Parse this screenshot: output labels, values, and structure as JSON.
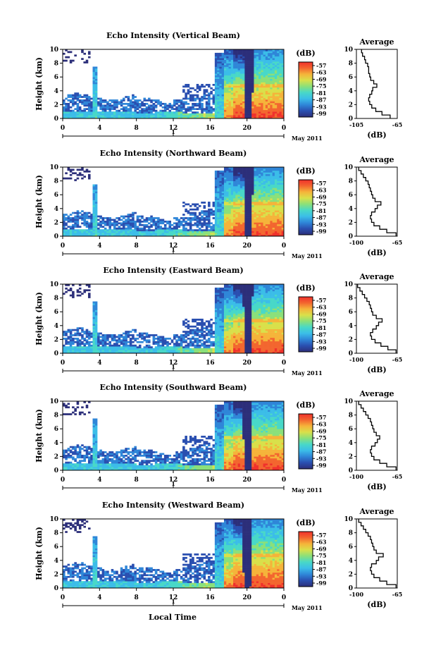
{
  "figure": {
    "xaxis_label": "Local Time",
    "colorbar_unit": "(dB)",
    "colorbar_ticks": [
      "-57",
      "-63",
      "-69",
      "-75",
      "-81",
      "-87",
      "-93",
      "-99"
    ],
    "colorscale": [
      "#2c2f7a",
      "#2a4fb0",
      "#2f86d8",
      "#3bbde8",
      "#48d8c8",
      "#8ae07a",
      "#d9e04a",
      "#f5b43a",
      "#f3662f",
      "#f0302b"
    ],
    "x_ticks": [
      "0",
      "4",
      "8",
      "12",
      "16",
      "20",
      "0"
    ],
    "date_axis": {
      "label": "1",
      "month": "May 2011"
    },
    "y_ticks": [
      "0",
      "2",
      "4",
      "6",
      "8",
      "10"
    ],
    "y_label": "Height (km)",
    "avg_title": "Average",
    "avg_unit": "(dB)"
  },
  "chart_data": [
    {
      "type": "heatmap",
      "title": "Echo Intensity (Vertical Beam)",
      "xlabel": "",
      "ylabel": "Height (km)",
      "xlim": [
        0,
        24
      ],
      "ylim": [
        0,
        10
      ],
      "colorbar": {
        "label": "(dB)",
        "range": [
          -99,
          -57
        ]
      },
      "average_profile": {
        "title": "Average",
        "xlabel": "(dB)",
        "xlim": [
          -105,
          -65
        ],
        "xticks": [
          "-105",
          "-65"
        ],
        "yticks": [
          "0",
          "2",
          "4",
          "6",
          "8",
          "10"
        ],
        "height_km": [
          0,
          0.5,
          1,
          1.5,
          2,
          2.5,
          3,
          3.5,
          4,
          4.5,
          5,
          5.5,
          6,
          6.5,
          7,
          7.5,
          8,
          8.5,
          9,
          9.5
        ],
        "values_db": [
          -72,
          -80,
          -86,
          -90,
          -92,
          -93,
          -92,
          -90,
          -89,
          -85,
          -88,
          -91,
          -92,
          -93,
          -93,
          -94,
          -96,
          -97,
          -99,
          -100
        ]
      }
    },
    {
      "type": "heatmap",
      "title": "Echo Intensity (Northward Beam)",
      "xlabel": "",
      "ylabel": "Height (km)",
      "xlim": [
        0,
        24
      ],
      "ylim": [
        0,
        10
      ],
      "colorbar": {
        "label": "(dB)",
        "range": [
          -99,
          -57
        ]
      },
      "average_profile": {
        "title": "Average",
        "xlabel": "(dB)",
        "xlim": [
          -100,
          -65
        ],
        "xticks": [
          "-100",
          "-65"
        ],
        "yticks": [
          "0",
          "2",
          "4",
          "6",
          "8",
          "10"
        ],
        "height_km": [
          0,
          0.5,
          1,
          1.5,
          2,
          2.5,
          3,
          3.5,
          4,
          4.5,
          5,
          5.5,
          6,
          6.5,
          7,
          7.5,
          8,
          8.5,
          9,
          9.5
        ],
        "values_db": [
          -66,
          -74,
          -80,
          -85,
          -87,
          -88,
          -87,
          -84,
          -82,
          -79,
          -84,
          -86,
          -87,
          -88,
          -89,
          -90,
          -92,
          -94,
          -96,
          -98
        ]
      }
    },
    {
      "type": "heatmap",
      "title": "Echo Intensity (Eastward Beam)",
      "xlabel": "",
      "ylabel": "Height (km)",
      "xlim": [
        0,
        24
      ],
      "ylim": [
        0,
        10
      ],
      "colorbar": {
        "label": "(dB)",
        "range": [
          -99,
          -57
        ]
      },
      "average_profile": {
        "title": "Average",
        "xlabel": "(dB)",
        "xlim": [
          -100,
          -65
        ],
        "xticks": [
          "-100",
          "-65"
        ],
        "yticks": [
          "0",
          "2",
          "4",
          "6",
          "8",
          "10"
        ],
        "height_km": [
          0,
          0.5,
          1,
          1.5,
          2,
          2.5,
          3,
          3.5,
          4,
          4.5,
          5,
          5.5,
          6,
          6.5,
          7,
          7.5,
          8,
          8.5,
          9,
          9.5
        ],
        "values_db": [
          -66,
          -73,
          -79,
          -84,
          -87,
          -88,
          -86,
          -83,
          -81,
          -78,
          -83,
          -86,
          -87,
          -88,
          -89,
          -91,
          -93,
          -95,
          -97,
          -99
        ]
      }
    },
    {
      "type": "heatmap",
      "title": "Echo Intensity (Southward Beam)",
      "xlabel": "",
      "ylabel": "Height (km)",
      "xlim": [
        0,
        24
      ],
      "ylim": [
        0,
        10
      ],
      "colorbar": {
        "label": "(dB)",
        "range": [
          -99,
          -57
        ]
      },
      "average_profile": {
        "title": "Average",
        "xlabel": "(dB)",
        "xlim": [
          -100,
          -65
        ],
        "xticks": [
          "-100",
          "-65"
        ],
        "yticks": [
          "0",
          "2",
          "4",
          "6",
          "8",
          "10"
        ],
        "height_km": [
          0,
          0.5,
          1,
          1.5,
          2,
          2.5,
          3,
          3.5,
          4,
          4.5,
          5,
          5.5,
          6,
          6.5,
          7,
          7.5,
          8,
          8.5,
          9,
          9.5
        ],
        "values_db": [
          -66,
          -74,
          -80,
          -85,
          -87,
          -88,
          -87,
          -84,
          -82,
          -80,
          -83,
          -85,
          -86,
          -87,
          -88,
          -90,
          -92,
          -94,
          -96,
          -98
        ]
      }
    },
    {
      "type": "heatmap",
      "title": "Echo Intensity (Westward Beam)",
      "xlabel": "Local Time",
      "ylabel": "Height (km)",
      "xlim": [
        0,
        24
      ],
      "ylim": [
        0,
        10
      ],
      "colorbar": {
        "label": "(dB)",
        "range": [
          -99,
          -57
        ]
      },
      "average_profile": {
        "title": "Average",
        "xlabel": "(dB)",
        "xlim": [
          -100,
          -65
        ],
        "xticks": [
          "-100",
          "-65"
        ],
        "yticks": [
          "0",
          "2",
          "4",
          "6",
          "8",
          "10"
        ],
        "height_km": [
          0,
          0.5,
          1,
          1.5,
          2,
          2.5,
          3,
          3.5,
          4,
          4.5,
          5,
          5.5,
          6,
          6.5,
          7,
          7.5,
          8,
          8.5,
          9,
          9.5
        ],
        "values_db": [
          -66,
          -74,
          -80,
          -85,
          -87,
          -88,
          -87,
          -83,
          -81,
          -77,
          -83,
          -85,
          -86,
          -87,
          -88,
          -90,
          -92,
          -94,
          -96,
          -98
        ]
      }
    }
  ]
}
